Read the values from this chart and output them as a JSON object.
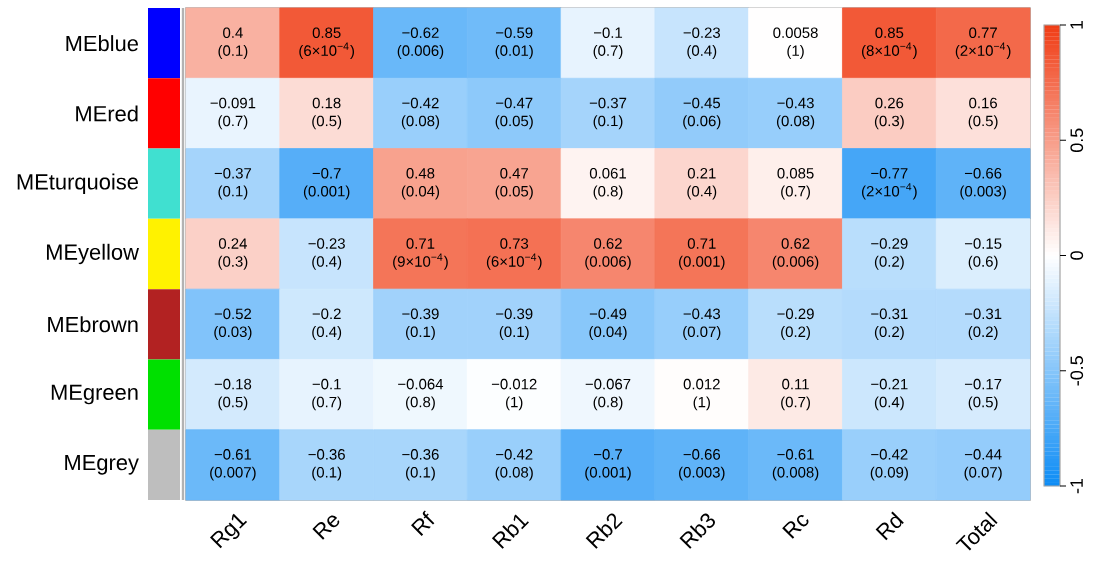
{
  "chart_data": {
    "type": "heatmap",
    "categories": [
      "Rg1",
      "Re",
      "Rf",
      "Rb1",
      "Rb2",
      "Rb3",
      "Rc",
      "Rd",
      "Total"
    ],
    "y_categories": [
      "MEblue",
      "MEred",
      "MEturquoise",
      "MEyellow",
      "MEbrown",
      "MEgreen",
      "MEgrey"
    ],
    "cells": [
      [
        0.4,
        0.85,
        -0.62,
        -0.59,
        -0.1,
        -0.23,
        0.0058,
        0.85,
        0.77
      ],
      [
        -0.091,
        0.18,
        -0.42,
        -0.47,
        -0.37,
        -0.45,
        -0.43,
        0.26,
        0.16
      ],
      [
        -0.37,
        -0.7,
        0.48,
        0.47,
        0.061,
        0.21,
        0.085,
        -0.77,
        -0.66
      ],
      [
        0.24,
        -0.23,
        0.71,
        0.73,
        0.62,
        0.71,
        0.62,
        -0.29,
        -0.15
      ],
      [
        -0.52,
        -0.2,
        -0.39,
        -0.39,
        -0.49,
        -0.43,
        -0.29,
        -0.31,
        -0.31
      ],
      [
        -0.18,
        -0.1,
        -0.064,
        -0.012,
        -0.067,
        0.012,
        0.11,
        -0.21,
        -0.17
      ],
      [
        -0.61,
        -0.36,
        -0.36,
        -0.42,
        -0.7,
        -0.66,
        -0.61,
        -0.42,
        -0.44
      ]
    ],
    "cell_labels": [
      [
        "0.4 (0.1)",
        "0.85 (6×10$^{−4}$)",
        "−0.62 (0.006)",
        "−0.59 (0.01)",
        "−0.1 (0.7)",
        "−0.23 (0.4)",
        "0.0058 (1)",
        "0.85 (8×10$^{−4}$)",
        "0.77 (2×10$^{−4}$)"
      ],
      [
        "−0.091 (0.7)",
        "0.18 (0.5)",
        "−0.42 (0.08)",
        "−0.47 (0.05)",
        "−0.37 (0.1)",
        "−0.45 (0.06)",
        "−0.43 (0.08)",
        "0.26 (0.3)",
        "0.16 (0.5)"
      ],
      [
        "−0.37 (0.1)",
        "−0.7 (0.001)",
        "0.48 (0.04)",
        "0.47 (0.05)",
        "0.061 (0.8)",
        "0.21 (0.4)",
        "0.085 (0.7)",
        "−0.77 (2×10$^{−4}$)",
        "−0.66 (0.003)"
      ],
      [
        "0.24 (0.3)",
        "−0.23 (0.4)",
        "0.71 (9×10$^{−4}$)",
        "0.73 (6×10$^{−4}$)",
        "0.62 (0.006)",
        "0.71 (0.001)",
        "0.62 (0.006)",
        "−0.29 (0.2)",
        "−0.15 (0.6)"
      ],
      [
        "−0.52 (0.03)",
        "−0.2 (0.4)",
        "−0.39 (0.1)",
        "−0.39 (0.1)",
        "−0.49 (0.04)",
        "−0.43 (0.07)",
        "−0.29 (0.2)",
        "−0.31 (0.2)",
        "−0.31 (0.2)"
      ],
      [
        "−0.18 (0.5)",
        "−0.1 (0.7)",
        "−0.064 (0.8)",
        "−0.012 (1)",
        "−0.067 (0.8)",
        "0.012 (1)",
        "0.11 (0.7)",
        "−0.21 (0.4)",
        "−0.17 (0.5)"
      ],
      [
        "−0.61 (0.007)",
        "−0.36 (0.1)",
        "−0.36 (0.1)",
        "−0.42 (0.08)",
        "−0.7 (0.001)",
        "−0.66 (0.003)",
        "−0.61 (0.008)",
        "−0.42 (0.09)",
        "−0.44 (0.07)"
      ]
    ],
    "clim": [
      -1,
      1
    ],
    "cticks": [
      -1,
      -0.5,
      0,
      0.5,
      1
    ]
  }
}
